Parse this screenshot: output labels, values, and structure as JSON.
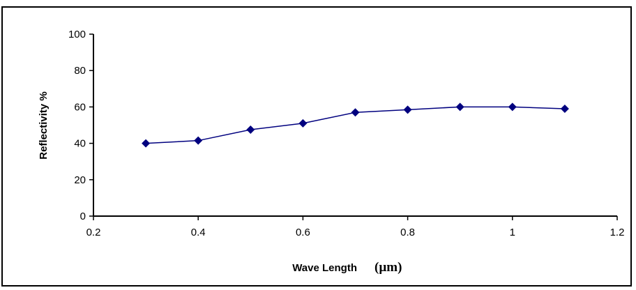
{
  "chart_data": {
    "type": "line",
    "title": "",
    "xlabel": "Wave Length",
    "xunit": "(µm)",
    "ylabel": "Reflectivity %",
    "xlim": [
      0.2,
      1.2
    ],
    "ylim": [
      0,
      100
    ],
    "x_ticks": [
      "0.2",
      "0.4",
      "0.6",
      "0.8",
      "1",
      "1.2"
    ],
    "y_ticks": [
      "0",
      "20",
      "40",
      "60",
      "80",
      "100"
    ],
    "grid": false,
    "legend": "none",
    "series": [
      {
        "color": "#00007F",
        "marker": "diamond",
        "x": [
          0.3,
          0.4,
          0.5,
          0.6,
          0.7,
          0.8,
          0.9,
          1.0,
          1.1
        ],
        "y": [
          40,
          41.5,
          47.5,
          51,
          57,
          58.5,
          60,
          60,
          59
        ]
      }
    ]
  }
}
